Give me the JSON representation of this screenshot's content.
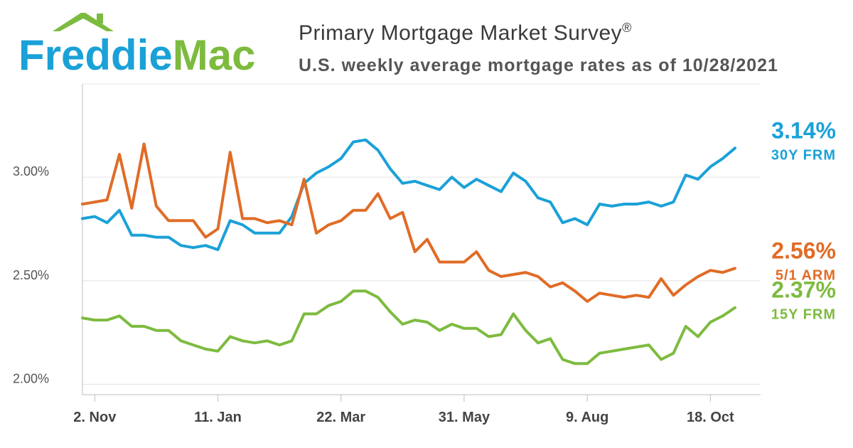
{
  "brand": {
    "logo_text_part1": "Freddie",
    "logo_text_part2": "Mac",
    "color_blue": "#1aa1d8",
    "color_green": "#7dbb3f"
  },
  "chart_data": {
    "type": "line",
    "title": "Primary Mortgage Market Survey",
    "title_mark": "®",
    "subtitle": "U.S. weekly average mortgage rates as of 10/28/2021",
    "ylim": [
      1.95,
      3.45
    ],
    "xlim": [
      0,
      53
    ],
    "grid": true,
    "y_ticks": [
      {
        "value": 2.0,
        "label": "2.00%"
      },
      {
        "value": 2.5,
        "label": "2.50%"
      },
      {
        "value": 3.0,
        "label": "3.00%"
      }
    ],
    "x_ticks": [
      {
        "index": 1,
        "label": "2. Nov"
      },
      {
        "index": 11,
        "label": "11. Jan"
      },
      {
        "index": 21,
        "label": "22. Mar"
      },
      {
        "index": 31,
        "label": "31. May"
      },
      {
        "index": 41,
        "label": "9. Aug"
      },
      {
        "index": 51,
        "label": "18. Oct"
      }
    ],
    "series": [
      {
        "name": "30Y FRM",
        "end_label": "3.14%",
        "color": "#1aa1d8",
        "values": [
          2.8,
          2.81,
          2.78,
          2.84,
          2.72,
          2.72,
          2.71,
          2.71,
          2.67,
          2.66,
          2.67,
          2.65,
          2.79,
          2.77,
          2.73,
          2.73,
          2.73,
          2.81,
          2.97,
          3.02,
          3.05,
          3.09,
          3.17,
          3.18,
          3.13,
          3.04,
          2.97,
          2.98,
          2.96,
          2.94,
          3.0,
          2.95,
          2.99,
          2.96,
          2.93,
          3.02,
          2.98,
          2.9,
          2.88,
          2.78,
          2.8,
          2.77,
          2.87,
          2.86,
          2.87,
          2.87,
          2.88,
          2.86,
          2.88,
          3.01,
          2.99,
          3.05,
          3.09,
          3.14
        ]
      },
      {
        "name": "5/1 ARM",
        "end_label": "2.56%",
        "color": "#e06c27",
        "values": [
          2.87,
          2.88,
          2.89,
          3.11,
          2.85,
          3.16,
          2.86,
          2.79,
          2.79,
          2.79,
          2.71,
          2.75,
          3.12,
          2.8,
          2.8,
          2.78,
          2.79,
          2.77,
          2.99,
          2.73,
          2.77,
          2.79,
          2.84,
          2.84,
          2.92,
          2.8,
          2.83,
          2.64,
          2.7,
          2.59,
          2.59,
          2.59,
          2.64,
          2.55,
          2.52,
          2.53,
          2.54,
          2.52,
          2.47,
          2.49,
          2.45,
          2.4,
          2.44,
          2.43,
          2.42,
          2.43,
          2.42,
          2.51,
          2.43,
          2.48,
          2.52,
          2.55,
          2.54,
          2.56
        ]
      },
      {
        "name": "15Y FRM",
        "end_label": "2.37%",
        "color": "#7dbb3f",
        "values": [
          2.32,
          2.31,
          2.31,
          2.33,
          2.28,
          2.28,
          2.26,
          2.26,
          2.21,
          2.19,
          2.17,
          2.16,
          2.23,
          2.21,
          2.2,
          2.21,
          2.19,
          2.21,
          2.34,
          2.34,
          2.38,
          2.4,
          2.45,
          2.45,
          2.42,
          2.35,
          2.29,
          2.31,
          2.3,
          2.26,
          2.29,
          2.27,
          2.27,
          2.23,
          2.24,
          2.34,
          2.26,
          2.2,
          2.22,
          2.12,
          2.1,
          2.1,
          2.15,
          2.16,
          2.17,
          2.18,
          2.19,
          2.12,
          2.15,
          2.28,
          2.23,
          2.3,
          2.33,
          2.37
        ]
      }
    ]
  }
}
